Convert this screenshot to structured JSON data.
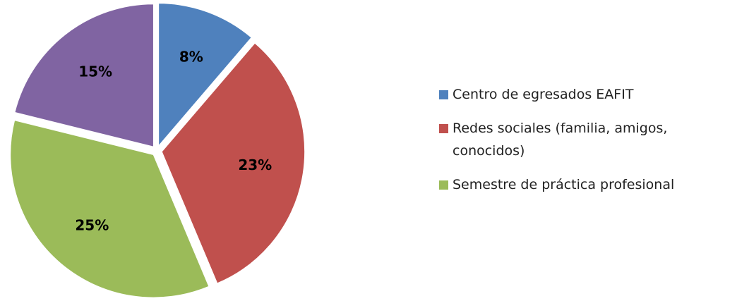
{
  "chart_data": {
    "type": "pie",
    "categories": [
      "Centro de egresados EAFIT",
      "Redes sociales (familia, amigos, conocidos)",
      "Semestre de práctica profesional",
      null
    ],
    "values": [
      8,
      23,
      25,
      15
    ],
    "value_labels": [
      "8%",
      "23%",
      "25%",
      "15%"
    ],
    "colors": [
      "#4f81bd",
      "#c0504d",
      "#9bbb59",
      "#8064a2"
    ],
    "legend": "right"
  }
}
